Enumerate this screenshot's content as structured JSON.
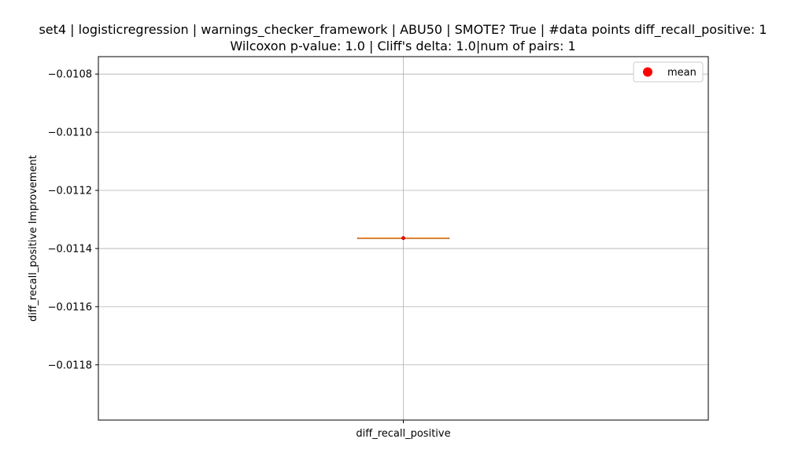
{
  "chart_data": {
    "type": "box",
    "title_line1": "set4 | logisticregression | warnings_checker_framework | ABU50 | SMOTE? True | #data points diff_recall_positive: 1",
    "title_line2": "Wilcoxon p-value: 1.0 | Cliff's delta: 1.0|num of pairs: 1",
    "ylabel": "diff_recall_positive Improvement",
    "xlabel": "",
    "categories": [
      "diff_recall_positive"
    ],
    "ylim": [
      -0.01199,
      -0.01074
    ],
    "yticks": [
      -0.0108,
      -0.011,
      -0.0112,
      -0.0114,
      -0.0116,
      -0.0118
    ],
    "ytick_labels": [
      "−0.0108",
      "−0.0110",
      "−0.0112",
      "−0.0114",
      "−0.0116",
      "−0.0118"
    ],
    "values": [
      -0.011364
    ],
    "box": {
      "min": -0.011364,
      "q1": -0.011364,
      "median": -0.011364,
      "q3": -0.011364,
      "max": -0.011364,
      "mean": -0.011364
    },
    "grid": true,
    "legend": {
      "position": "upper-right",
      "entries": [
        {
          "label": "mean",
          "color": "#ff0000",
          "marker": "circle"
        }
      ]
    },
    "colors": {
      "median": "#ff7f0e",
      "mean": "#ff0000",
      "box": "#000000",
      "grid": "#b0b0b0"
    }
  }
}
